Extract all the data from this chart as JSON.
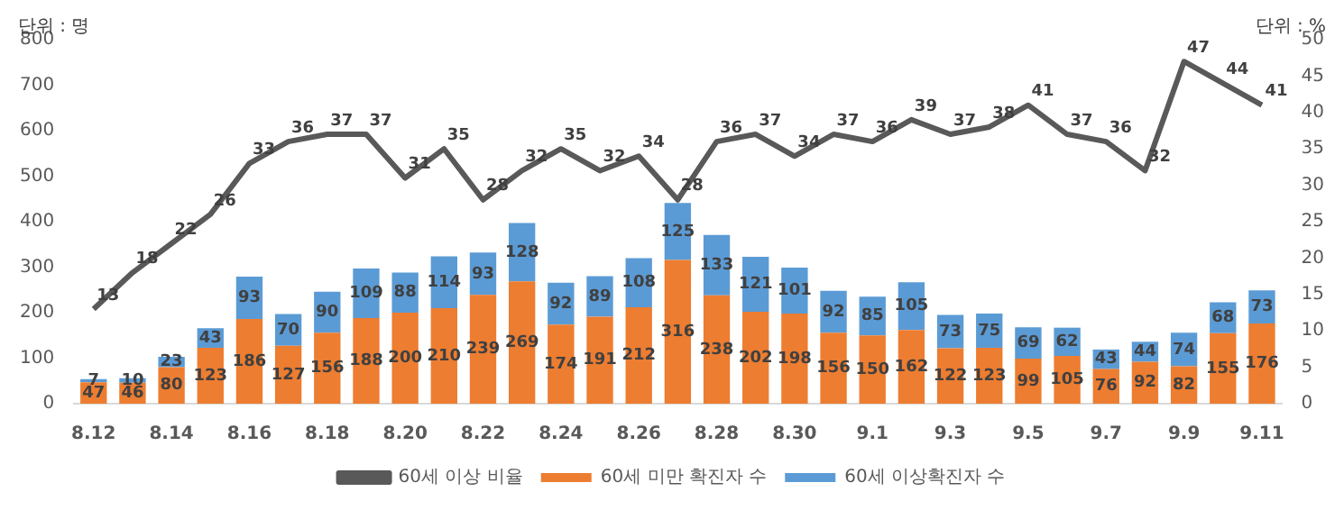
{
  "chart_data": {
    "type": "bar",
    "stacked": true,
    "ylabel": "단위 : 명",
    "y2label": "단위 : %",
    "categories": [
      "8.12",
      null,
      "8.14",
      null,
      "8.16",
      null,
      "8.18",
      null,
      "8.20",
      null,
      "8.22",
      null,
      "8.24",
      null,
      "8.26",
      null,
      "8.28",
      null,
      "8.30",
      null,
      "9.1",
      null,
      "9.3",
      null,
      "9.5",
      null,
      "9.7",
      null,
      "9.9",
      null,
      "9.11"
    ],
    "series": [
      {
        "name": "60세 미만 확진자 수",
        "color": "#ed7d31",
        "values": [
          47,
          46,
          80,
          123,
          186,
          127,
          156,
          188,
          200,
          210,
          239,
          269,
          174,
          191,
          212,
          316,
          238,
          202,
          198,
          156,
          150,
          162,
          122,
          123,
          99,
          105,
          76,
          92,
          82,
          155,
          176
        ]
      },
      {
        "name": "60세 이상확진자 수",
        "color": "#5b9bd5",
        "values": [
          7,
          10,
          23,
          43,
          93,
          70,
          90,
          109,
          88,
          114,
          93,
          128,
          92,
          89,
          108,
          125,
          133,
          121,
          101,
          92,
          85,
          105,
          73,
          75,
          69,
          62,
          43,
          44,
          74,
          68,
          73
        ]
      },
      {
        "name": "60세 이상 비율",
        "type": "line",
        "axis": "y2",
        "color": "#595959",
        "values": [
          13,
          18,
          22,
          26,
          33,
          36,
          37,
          37,
          31,
          35,
          28,
          32,
          35,
          32,
          34,
          28,
          36,
          37,
          34,
          37,
          36,
          39,
          37,
          38,
          41,
          37,
          36,
          32,
          47,
          44,
          41
        ]
      }
    ],
    "ylim": [
      0,
      800
    ],
    "yticks": [
      0,
      100,
      200,
      300,
      400,
      500,
      600,
      700,
      800
    ],
    "y2lim": [
      0,
      50
    ],
    "y2ticks": [
      0,
      5,
      10,
      15,
      20,
      25,
      30,
      35,
      40,
      45,
      50
    ],
    "grid": false,
    "legend": "bottom",
    "marker": "none",
    "data_labels": true
  }
}
